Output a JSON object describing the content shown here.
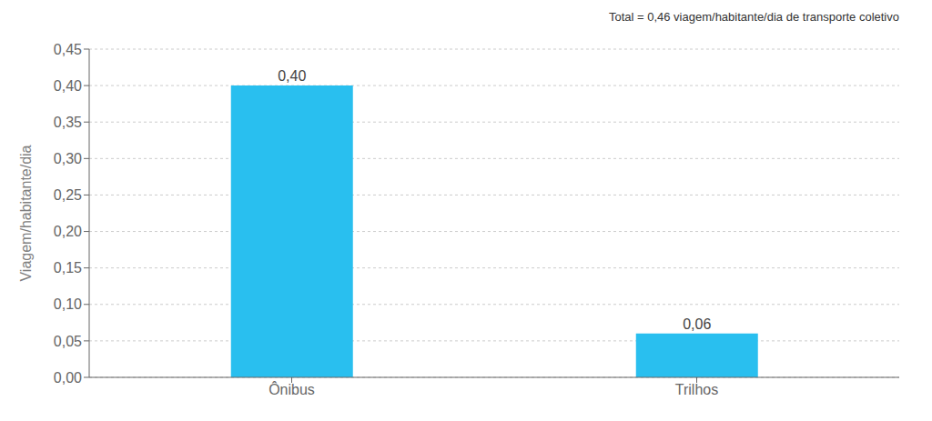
{
  "chart_data": {
    "type": "bar",
    "categories": [
      "Ônibus",
      "Trilhos"
    ],
    "values": [
      0.4,
      0.06
    ],
    "value_labels": [
      "0,40",
      "0,06"
    ],
    "data_labels": true,
    "color": "#29BFEF",
    "ylabel": "Viagem/habitante/dia",
    "annotation": "Total = 0,46 viagem/habitante/dia de transporte coletivo",
    "ylim": [
      0,
      0.45
    ],
    "yticks": [
      {
        "value": 0.0,
        "label": "0,00"
      },
      {
        "value": 0.05,
        "label": "0,05"
      },
      {
        "value": 0.1,
        "label": "0,10"
      },
      {
        "value": 0.15,
        "label": "0,15"
      },
      {
        "value": 0.2,
        "label": "0,20"
      },
      {
        "value": 0.25,
        "label": "0,25"
      },
      {
        "value": 0.3,
        "label": "0,30"
      },
      {
        "value": 0.35,
        "label": "0,35"
      },
      {
        "value": 0.4,
        "label": "0,40"
      },
      {
        "value": 0.45,
        "label": "0,45"
      }
    ],
    "grid": true
  }
}
